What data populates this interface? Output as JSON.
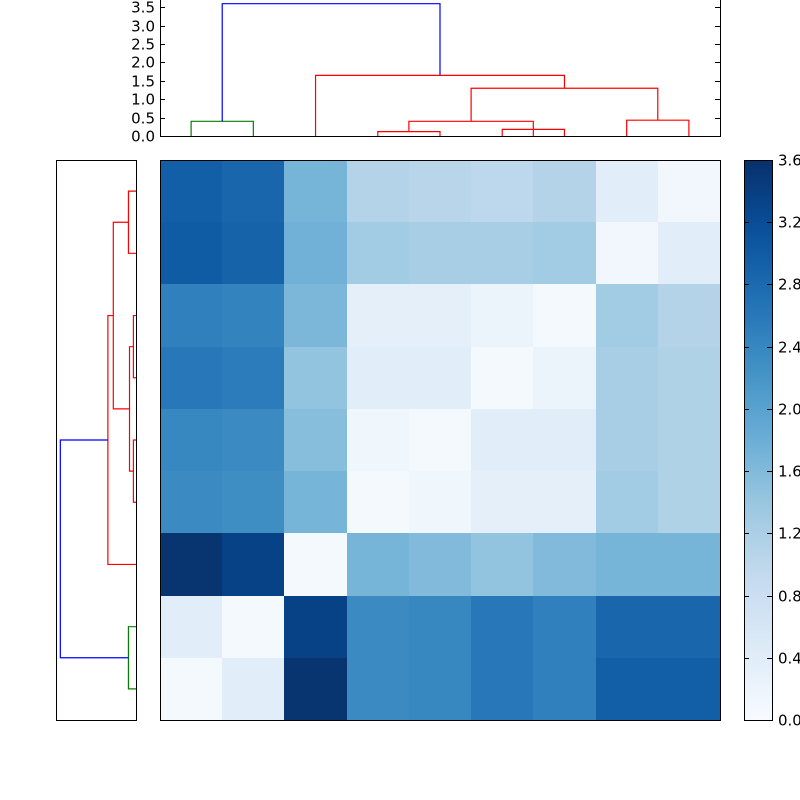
{
  "chart_data": {
    "type": "heatmap",
    "title": "",
    "colormap": "Blues",
    "colorbar": {
      "range": [
        0.0,
        3.6
      ],
      "ticks": [
        0.0,
        0.4,
        0.8,
        1.2,
        1.6,
        2.0,
        2.4,
        2.8,
        3.2,
        3.6
      ],
      "tick_labels": [
        "0.0",
        "0.4",
        "0.8",
        "1.2",
        "1.6",
        "2.0",
        "2.4",
        "2.8",
        "3.2",
        "3.6"
      ]
    },
    "heatmap": {
      "values": [
        [
          2.95,
          2.85,
          1.7,
          1.1,
          1.05,
          1.0,
          1.1,
          0.4,
          0.1
        ],
        [
          3.0,
          2.9,
          1.75,
          1.3,
          1.25,
          1.25,
          1.3,
          0.1,
          0.4
        ],
        [
          2.5,
          2.45,
          1.65,
          0.35,
          0.35,
          0.2,
          0.05,
          1.3,
          1.1
        ],
        [
          2.6,
          2.55,
          1.45,
          0.4,
          0.4,
          0.05,
          0.2,
          1.25,
          1.15
        ],
        [
          2.4,
          2.35,
          1.55,
          0.15,
          0.05,
          0.4,
          0.4,
          1.25,
          1.15
        ],
        [
          2.35,
          2.3,
          1.7,
          0.05,
          0.15,
          0.35,
          0.35,
          1.3,
          1.15
        ],
        [
          3.55,
          3.35,
          0.05,
          1.7,
          1.6,
          1.45,
          1.6,
          1.7,
          1.7
        ],
        [
          0.4,
          0.05,
          3.35,
          2.35,
          2.4,
          2.6,
          2.5,
          2.85,
          2.85
        ],
        [
          0.05,
          0.4,
          3.55,
          2.35,
          2.4,
          2.6,
          2.5,
          2.95,
          2.95
        ]
      ]
    },
    "top_dendrogram": {
      "ylim": [
        0,
        3.7
      ],
      "ticks": [
        0.0,
        0.5,
        1.0,
        1.5,
        2.0,
        2.5,
        3.0,
        3.5
      ],
      "tick_labels": [
        "0.0",
        "0.5",
        "1.0",
        "1.5",
        "2.0",
        "2.5",
        "3.0",
        "3.5"
      ],
      "links": [
        {
          "x": [
            0.5,
            1.5
          ],
          "ybottom": [
            0.0,
            0.0
          ],
          "height": 0.4,
          "color": "#008000"
        },
        {
          "x": [
            3.5,
            4.5
          ],
          "ybottom": [
            0.0,
            0.0
          ],
          "height": 0.12,
          "color": "#ff0000"
        },
        {
          "x": [
            4.0,
            6.0
          ],
          "ybottom": [
            0.12,
            0.0
          ],
          "height": 0.4,
          "color": "#ff0000"
        },
        {
          "x": [
            5.5,
            6.5
          ],
          "ybottom": [
            0.0,
            0.0
          ],
          "height": 0.18,
          "color": "#ff0000"
        },
        {
          "x": [
            7.5,
            8.5
          ],
          "ybottom": [
            0.0,
            0.0
          ],
          "height": 0.43,
          "color": "#ff0000"
        },
        {
          "x": [
            5.0,
            8.0
          ],
          "ybottom": [
            0.4,
            0.43
          ],
          "height": 1.3,
          "color": "#ff0000"
        },
        {
          "x": [
            2.5,
            6.5
          ],
          "ybottom": [
            0.0,
            1.3
          ],
          "height": 1.65,
          "color": "#ff0000"
        },
        {
          "x": [
            1.0,
            4.5
          ],
          "ybottom": [
            0.4,
            1.65
          ],
          "height": 3.6,
          "color": "#0000ff"
        }
      ]
    },
    "left_dendrogram": {
      "xlim": [
        3.7,
        0
      ],
      "links": [
        {
          "y": [
            7.5,
            8.5
          ],
          "xleft": [
            0.0,
            0.0
          ],
          "height": 0.35,
          "color": "#008000"
        },
        {
          "y": [
            0.5,
            1.5
          ],
          "xleft": [
            0.0,
            0.0
          ],
          "height": 0.35,
          "color": "#ff0000"
        },
        {
          "y": [
            2.5,
            3.5
          ],
          "xleft": [
            0.0,
            0.0
          ],
          "height": 0.12,
          "color": "#ff0000"
        },
        {
          "y": [
            4.5,
            5.5
          ],
          "xleft": [
            0.0,
            0.0
          ],
          "height": 0.12,
          "color": "#ff0000"
        },
        {
          "y": [
            3.0,
            5.0
          ],
          "xleft": [
            0.12,
            0.12
          ],
          "height": 0.3,
          "color": "#ff0000"
        },
        {
          "y": [
            1.0,
            4.0
          ],
          "xleft": [
            0.35,
            0.3
          ],
          "height": 1.05,
          "color": "#ff0000"
        },
        {
          "y": [
            2.5,
            6.5
          ],
          "xleft": [
            1.05,
            0.0
          ],
          "height": 1.3,
          "color": "#ff0000"
        },
        {
          "y": [
            4.5,
            8.0
          ],
          "xleft": [
            1.3,
            0.35
          ],
          "height": 3.5,
          "color": "#0000ff"
        }
      ]
    }
  }
}
